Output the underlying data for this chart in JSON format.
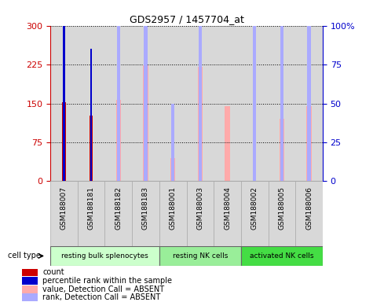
{
  "title": "GDS2957 / 1457704_at",
  "samples": [
    "GSM188007",
    "GSM188181",
    "GSM188182",
    "GSM188183",
    "GSM188001",
    "GSM188003",
    "GSM188004",
    "GSM188002",
    "GSM188005",
    "GSM188006"
  ],
  "cell_types": [
    {
      "label": "resting bulk splenocytes",
      "start": 0,
      "end": 4,
      "color": "#ccffcc"
    },
    {
      "label": "resting NK cells",
      "start": 4,
      "end": 7,
      "color": "#99ee99"
    },
    {
      "label": "activated NK cells",
      "start": 7,
      "end": 10,
      "color": "#44dd44"
    }
  ],
  "value_bars": [
    null,
    null,
    157,
    223,
    45,
    220,
    145,
    null,
    120,
    145
  ],
  "rank_bars": [
    null,
    null,
    107,
    138,
    null,
    143,
    null,
    null,
    120,
    130
  ],
  "count_bars": [
    152,
    127,
    null,
    null,
    null,
    null,
    null,
    null,
    null,
    null
  ],
  "percentile_bars": [
    103,
    85,
    null,
    null,
    null,
    null,
    null,
    null,
    null,
    null
  ],
  "absent_rank_bars": [
    null,
    null,
    null,
    null,
    50,
    null,
    null,
    112,
    null,
    null
  ],
  "ylim_left": [
    0,
    300
  ],
  "ylim_right": [
    0,
    100
  ],
  "left_ticks": [
    0,
    75,
    150,
    225,
    300
  ],
  "right_ticks": [
    0,
    25,
    50,
    75,
    100
  ],
  "left_color": "#cc0000",
  "right_color": "#0000cc",
  "value_color": "#ffaaaa",
  "rank_color": "#aaaaff",
  "count_color": "#cc0000",
  "percentile_color": "#0000cc",
  "bg_stripe_color": "#d8d8d8",
  "cell_type_label": "cell type",
  "legend_items": [
    {
      "color": "#cc0000",
      "label": "count"
    },
    {
      "color": "#0000cc",
      "label": "percentile rank within the sample"
    },
    {
      "color": "#ffaaaa",
      "label": "value, Detection Call = ABSENT"
    },
    {
      "color": "#aaaaff",
      "label": "rank, Detection Call = ABSENT"
    }
  ]
}
